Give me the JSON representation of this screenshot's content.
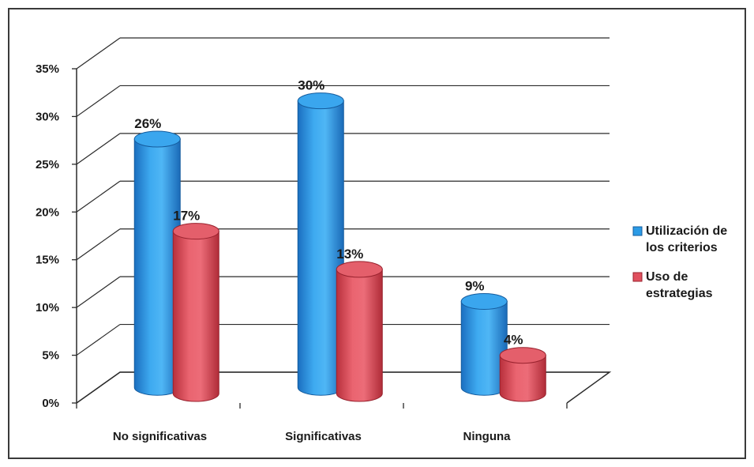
{
  "chart_data": {
    "type": "bar",
    "categories": [
      "No significativas",
      "Significativas",
      "Ninguna"
    ],
    "series": [
      {
        "name": "Utilización de los criterios",
        "legend_lines": [
          "Utilización de",
          "los criterios"
        ],
        "values": [
          26,
          30,
          9
        ],
        "labels": [
          "26%",
          "30%",
          "9%"
        ],
        "color": "#2b9be6"
      },
      {
        "name": "Uso de estrategias",
        "legend_lines": [
          "Uso de",
          "estrategias"
        ],
        "values": [
          17,
          13,
          4
        ],
        "labels": [
          "17%",
          "13%",
          "4%"
        ],
        "color": "#e0505e"
      }
    ],
    "ylim": [
      0,
      35
    ],
    "yticks": [
      0,
      5,
      10,
      15,
      20,
      25,
      30,
      35
    ],
    "ytick_labels": [
      "0%",
      "5%",
      "10%",
      "15%",
      "20%",
      "25%",
      "30%",
      "35%"
    ],
    "grid": true,
    "legend_position": "right",
    "style": "3d-cylinder"
  }
}
